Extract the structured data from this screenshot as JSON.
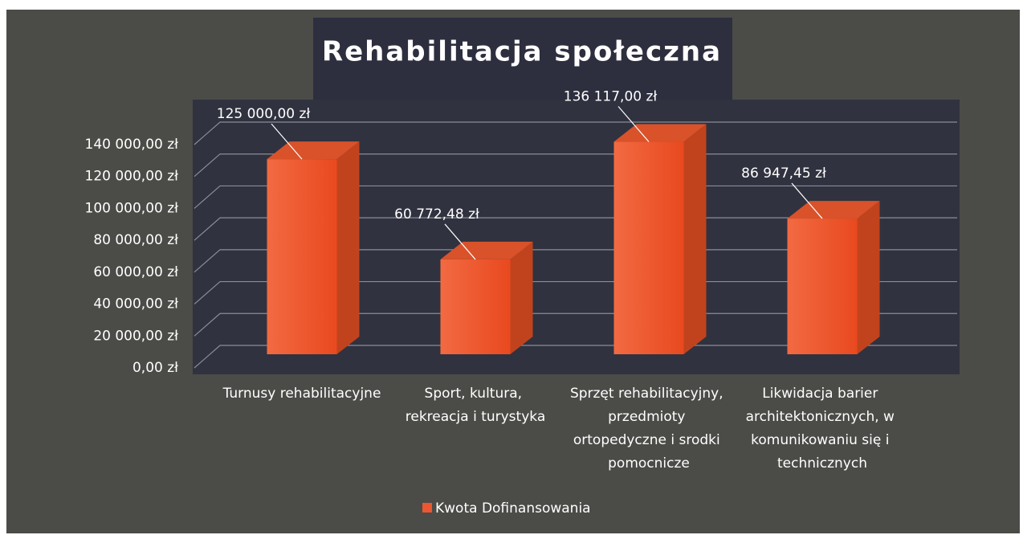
{
  "chart_data": {
    "type": "bar3d",
    "title": "Rehabilitacja społeczna",
    "categories": [
      "Turnusy rehabilitacyjne",
      "Sport, kultura, rekreacja i turystyka",
      "Sprzęt rehabilitacyjny, przedmioty ortopedyczne i srodki pomocnicze",
      "Likwidacja barier architektonicznych, w komunikowaniu się i technicznych"
    ],
    "series": [
      {
        "name": "Kwota Dofinansowania",
        "color": "#ec5630",
        "values": [
          125000,
          60772.48,
          136117,
          86947.45
        ],
        "value_labels": [
          "125 000,00 zł",
          "60 772,48 zł",
          "136 117,00 zł",
          "86 947,45 zł"
        ]
      }
    ],
    "ylim": [
      0,
      140000
    ],
    "yticks": [
      {
        "value": 0,
        "label": "0,00 zł"
      },
      {
        "value": 20000,
        "label": "20 000,00 zł"
      },
      {
        "value": 40000,
        "label": "40 000,00 zł"
      },
      {
        "value": 60000,
        "label": "60 000,00 zł"
      },
      {
        "value": 80000,
        "label": "80 000,00 zł"
      },
      {
        "value": 100000,
        "label": "100 000,00 zł"
      },
      {
        "value": 120000,
        "label": "120 000,00 zł"
      },
      {
        "value": 140000,
        "label": "140 000,00 zł"
      }
    ],
    "grid": true,
    "legend": "bottom"
  }
}
